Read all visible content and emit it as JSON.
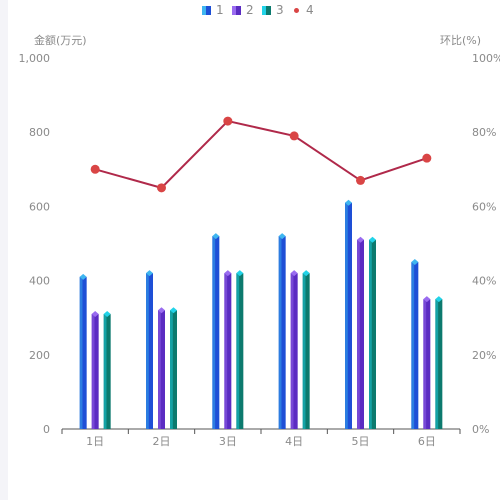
{
  "colors": {
    "background": "#ffffff",
    "page_bg": "#f4f4f8",
    "axis_text": "#8a8a8a",
    "axis_line": "#555555",
    "line_series": "#b0294a",
    "line_marker": "#d94545"
  },
  "chart_data": {
    "type": "bar",
    "categories": [
      "1日",
      "2日",
      "3日",
      "4日",
      "5日",
      "6日"
    ],
    "series": [
      {
        "name": "1",
        "kind": "bar",
        "axis": "left",
        "values": [
          410,
          420,
          520,
          520,
          610,
          450
        ],
        "color_top": "#3fb6f0",
        "color_body": "#1e4fd6"
      },
      {
        "name": "2",
        "kind": "bar",
        "axis": "left",
        "values": [
          310,
          320,
          420,
          420,
          510,
          350
        ],
        "color_top": "#9a6cf0",
        "color_body": "#5b2cc2"
      },
      {
        "name": "3",
        "kind": "bar",
        "axis": "left",
        "values": [
          310,
          320,
          420,
          420,
          510,
          350
        ],
        "color_top": "#22d3e8",
        "color_body": "#0c7a6e"
      },
      {
        "name": "4",
        "kind": "line",
        "axis": "right",
        "values": [
          70,
          65,
          83,
          79,
          67,
          73
        ]
      }
    ],
    "ylabel_left": "金额(万元)",
    "ylabel_right": "环比(%)",
    "ylim_left": [
      0,
      1000
    ],
    "ylim_right": [
      0,
      100
    ],
    "y_ticks_left": [
      "0",
      "200",
      "400",
      "600",
      "800",
      "1,000"
    ],
    "y_ticks_right": [
      "0%",
      "20%",
      "40%",
      "60%",
      "80%",
      "100%"
    ],
    "legend_position": "top-center",
    "grid": false
  }
}
